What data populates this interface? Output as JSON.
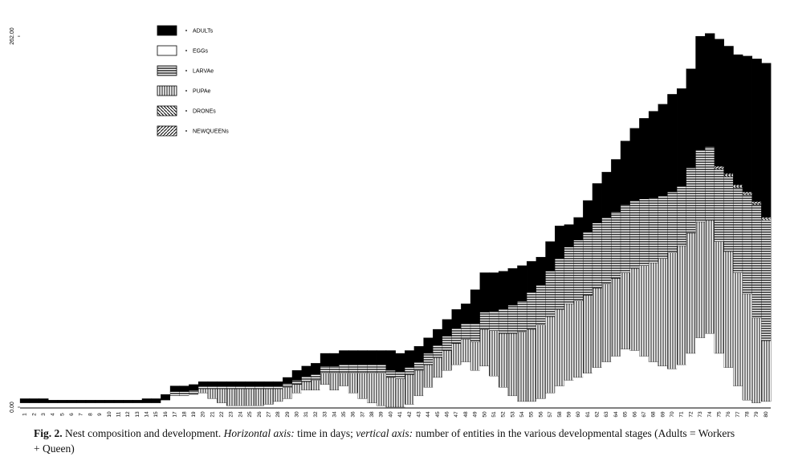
{
  "chart_data": {
    "type": "stacked-bar",
    "categories": [
      1,
      2,
      3,
      4,
      5,
      6,
      7,
      8,
      9,
      10,
      11,
      12,
      13,
      14,
      15,
      16,
      17,
      18,
      19,
      20,
      21,
      22,
      23,
      24,
      25,
      26,
      27,
      28,
      29,
      30,
      31,
      32,
      33,
      34,
      35,
      36,
      37,
      38,
      39,
      40,
      41,
      42,
      43,
      44,
      45,
      46,
      47,
      48,
      49,
      50,
      51,
      52,
      53,
      54,
      55,
      56,
      57,
      58,
      59,
      60,
      61,
      62,
      63,
      64,
      65,
      66,
      67,
      68,
      69,
      70,
      71,
      72,
      73,
      74,
      75,
      76,
      77,
      78,
      79,
      80
    ],
    "series": [
      {
        "name": "ADULTs",
        "pattern": "solid",
        "color": "#000000",
        "values": [
          3,
          3,
          3,
          2,
          2,
          2,
          2,
          2,
          2,
          2,
          2,
          2,
          2,
          3,
          3,
          4,
          4,
          4,
          4,
          3,
          3,
          3,
          3,
          3,
          3,
          3,
          3,
          3,
          4,
          7,
          7,
          8,
          9,
          9,
          10,
          10,
          10,
          10,
          10,
          14,
          13,
          12,
          11,
          11,
          11,
          12,
          13,
          14,
          24,
          28,
          27,
          27,
          26,
          25,
          22,
          20,
          21,
          23,
          16,
          16,
          22,
          28,
          32,
          37,
          45,
          51,
          57,
          61,
          65,
          69,
          69,
          70,
          80,
          80,
          90,
          90,
          92,
          96,
          101,
          109
        ]
      },
      {
        "name": "EGGs",
        "pattern": "empty",
        "color": "#000000",
        "values": [
          3,
          3,
          3,
          3,
          3,
          3,
          3,
          3,
          3,
          3,
          3,
          3,
          3,
          3,
          3,
          5,
          8,
          8,
          9,
          10,
          6,
          3,
          1,
          1,
          1,
          1,
          2,
          4,
          6,
          10,
          12,
          12,
          16,
          12,
          15,
          10,
          6,
          3,
          1,
          0,
          0,
          2,
          8,
          14,
          21,
          26,
          30,
          32,
          26,
          29,
          22,
          14,
          8,
          4,
          4,
          6,
          10,
          15,
          19,
          21,
          24,
          28,
          32,
          36,
          41,
          40,
          36,
          32,
          29,
          27,
          30,
          38,
          49,
          52,
          38,
          28,
          15,
          5,
          3,
          4
        ]
      },
      {
        "name": "LARVAe",
        "pattern": "horizontal",
        "color": "#000000",
        "values": [
          0,
          0,
          0,
          0,
          0,
          0,
          0,
          0,
          0,
          0,
          0,
          0,
          0,
          0,
          0,
          0,
          3,
          3,
          3,
          2,
          2,
          2,
          2,
          2,
          2,
          2,
          2,
          2,
          3,
          3,
          4,
          4,
          5,
          5,
          6,
          6,
          6,
          6,
          6,
          5,
          5,
          5,
          6,
          8,
          9,
          10,
          11,
          11,
          13,
          12,
          14,
          17,
          20,
          22,
          26,
          28,
          32,
          36,
          40,
          43,
          45,
          46,
          47,
          47,
          48,
          48,
          47,
          46,
          44,
          43,
          42,
          46,
          51,
          52,
          51,
          53,
          60,
          70,
          80,
          85
        ]
      },
      {
        "name": "PUPAe",
        "pattern": "vertical",
        "color": "#000000",
        "values": [
          0,
          0,
          0,
          0,
          0,
          0,
          0,
          0,
          0,
          0,
          0,
          0,
          0,
          0,
          0,
          0,
          0,
          0,
          0,
          3,
          7,
          10,
          12,
          12,
          12,
          12,
          11,
          9,
          8,
          6,
          6,
          7,
          8,
          12,
          9,
          14,
          18,
          21,
          23,
          21,
          20,
          21,
          18,
          16,
          14,
          14,
          15,
          16,
          20,
          26,
          32,
          38,
          44,
          49,
          51,
          52,
          54,
          54,
          54,
          54,
          55,
          56,
          55,
          55,
          54,
          58,
          64,
          70,
          76,
          82,
          84,
          85,
          82,
          80,
          79,
          82,
          80,
          75,
          60,
          43
        ]
      },
      {
        "name": "DRONEs",
        "pattern": "diagonal-down",
        "color": "#000000",
        "values": [
          0,
          0,
          0,
          0,
          0,
          0,
          0,
          0,
          0,
          0,
          0,
          0,
          0,
          0,
          0,
          0,
          0,
          0,
          0,
          0,
          0,
          0,
          0,
          0,
          0,
          0,
          0,
          0,
          0,
          0,
          0,
          0,
          0,
          0,
          0,
          0,
          0,
          0,
          0,
          0,
          0,
          0,
          0,
          0,
          0,
          0,
          0,
          0,
          0,
          0,
          0,
          0,
          0,
          0,
          0,
          0,
          0,
          0,
          0,
          0,
          0,
          0,
          0,
          0,
          0,
          0,
          0,
          0,
          0,
          0,
          0,
          0,
          0,
          0,
          1,
          1,
          1,
          1,
          1,
          1
        ]
      },
      {
        "name": "NEWQUEENs",
        "pattern": "diagonal-up",
        "color": "#000000",
        "values": [
          0,
          0,
          0,
          0,
          0,
          0,
          0,
          0,
          0,
          0,
          0,
          0,
          0,
          0,
          0,
          0,
          0,
          0,
          0,
          0,
          0,
          0,
          0,
          0,
          0,
          0,
          0,
          0,
          0,
          0,
          0,
          0,
          0,
          0,
          0,
          0,
          0,
          0,
          0,
          0,
          0,
          0,
          0,
          0,
          0,
          0,
          0,
          0,
          0,
          0,
          0,
          0,
          0,
          0,
          0,
          0,
          0,
          0,
          0,
          0,
          0,
          0,
          0,
          0,
          0,
          0,
          0,
          0,
          0,
          0,
          0,
          0,
          0,
          0,
          1,
          1,
          1,
          1,
          1,
          1
        ]
      }
    ],
    "ylim": [
      0,
      270
    ],
    "yticks": [
      {
        "value": 0,
        "label": "0.00"
      },
      {
        "value": 262,
        "label": "262.00"
      }
    ],
    "caption": [
      {
        "text": "Fig. 2.",
        "style": "bold"
      },
      {
        "text": "Nest composition and development.",
        "style": "normal"
      },
      {
        "text": "Horizontal axis:",
        "style": "italic"
      },
      {
        "text": "time in days;",
        "style": "normal"
      },
      {
        "text": "vertical axis:",
        "style": "italic"
      },
      {
        "text": "number of entities in the various developmental stages (Adults = Workers + Queen)",
        "style": "normal"
      }
    ]
  }
}
